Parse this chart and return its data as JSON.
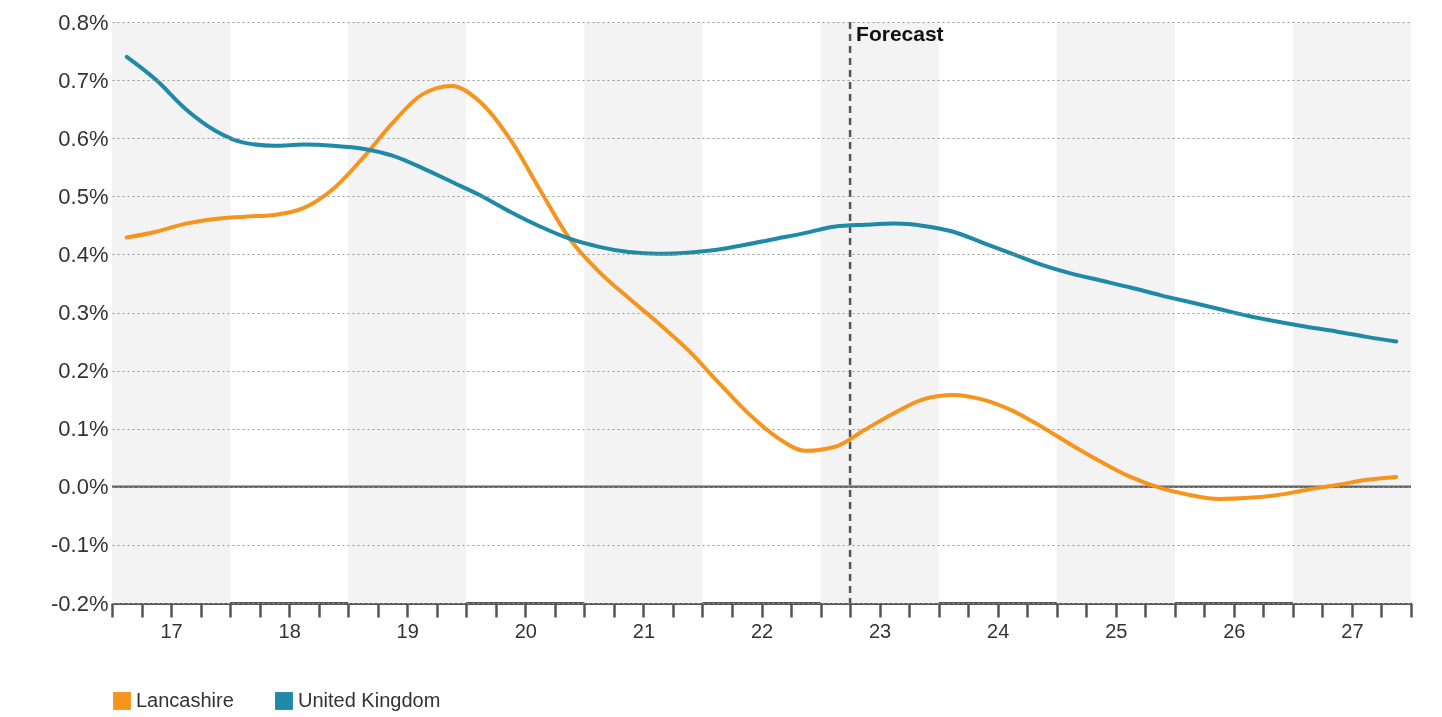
{
  "chart_data": {
    "type": "line",
    "x": [
      16.625,
      16.875,
      17.125,
      17.375,
      17.625,
      17.875,
      18.125,
      18.375,
      18.625,
      18.875,
      19.125,
      19.375,
      19.625,
      19.875,
      20.125,
      20.375,
      20.625,
      20.875,
      21.125,
      21.375,
      21.625,
      21.875,
      22.125,
      22.375,
      22.625,
      22.875,
      23.125,
      23.375,
      23.625,
      23.875,
      24.125,
      24.375,
      24.625,
      24.875,
      25.125,
      25.375,
      25.625,
      25.875,
      26.125,
      26.375,
      26.625,
      26.875,
      27.125,
      27.375
    ],
    "series": [
      {
        "name": "Lancashire",
        "color": "#f7941d",
        "values": [
          0.429,
          0.439,
          0.453,
          0.461,
          0.465,
          0.468,
          0.48,
          0.513,
          0.566,
          0.626,
          0.675,
          0.69,
          0.661,
          0.597,
          0.511,
          0.427,
          0.37,
          0.325,
          0.282,
          0.236,
          0.182,
          0.129,
          0.086,
          0.062,
          0.069,
          0.098,
          0.127,
          0.151,
          0.158,
          0.15,
          0.131,
          0.103,
          0.072,
          0.043,
          0.017,
          -0.002,
          -0.014,
          -0.021,
          -0.019,
          -0.014,
          -0.005,
          0.003,
          0.012,
          0.017
        ]
      },
      {
        "name": "United Kingdom",
        "color": "#1f8aa8",
        "values": [
          0.74,
          0.7,
          0.65,
          0.613,
          0.592,
          0.587,
          0.589,
          0.587,
          0.582,
          0.57,
          0.549,
          0.525,
          0.501,
          0.473,
          0.448,
          0.427,
          0.413,
          0.404,
          0.401,
          0.403,
          0.408,
          0.417,
          0.427,
          0.437,
          0.448,
          0.451,
          0.453,
          0.449,
          0.439,
          0.42,
          0.401,
          0.382,
          0.367,
          0.355,
          0.343,
          0.33,
          0.318,
          0.306,
          0.294,
          0.284,
          0.275,
          0.267,
          0.258,
          0.25
        ]
      }
    ],
    "xlim": [
      16.5,
      27.5
    ],
    "xticks": [
      {
        "value": 16.5,
        "label": null
      },
      {
        "value": 16.75,
        "label": null
      },
      {
        "value": 17,
        "label": "17"
      },
      {
        "value": 17.25,
        "label": null
      },
      {
        "value": 17.5,
        "label": null
      },
      {
        "value": 17.75,
        "label": null
      },
      {
        "value": 18,
        "label": "18"
      },
      {
        "value": 18.25,
        "label": null
      },
      {
        "value": 18.5,
        "label": null
      },
      {
        "value": 18.75,
        "label": null
      },
      {
        "value": 19,
        "label": "19"
      },
      {
        "value": 19.25,
        "label": null
      },
      {
        "value": 19.5,
        "label": null
      },
      {
        "value": 19.75,
        "label": null
      },
      {
        "value": 20,
        "label": "20"
      },
      {
        "value": 20.25,
        "label": null
      },
      {
        "value": 20.5,
        "label": null
      },
      {
        "value": 20.75,
        "label": null
      },
      {
        "value": 21,
        "label": "21"
      },
      {
        "value": 21.25,
        "label": null
      },
      {
        "value": 21.5,
        "label": null
      },
      {
        "value": 21.75,
        "label": null
      },
      {
        "value": 22,
        "label": "22"
      },
      {
        "value": 22.25,
        "label": null
      },
      {
        "value": 22.5,
        "label": null
      },
      {
        "value": 22.75,
        "label": null
      },
      {
        "value": 23,
        "label": "23"
      },
      {
        "value": 23.25,
        "label": null
      },
      {
        "value": 23.5,
        "label": null
      },
      {
        "value": 23.75,
        "label": null
      },
      {
        "value": 24,
        "label": "24"
      },
      {
        "value": 24.25,
        "label": null
      },
      {
        "value": 24.5,
        "label": null
      },
      {
        "value": 24.75,
        "label": null
      },
      {
        "value": 25,
        "label": "25"
      },
      {
        "value": 25.25,
        "label": null
      },
      {
        "value": 25.5,
        "label": null
      },
      {
        "value": 25.75,
        "label": null
      },
      {
        "value": 26,
        "label": "26"
      },
      {
        "value": 26.25,
        "label": null
      },
      {
        "value": 26.5,
        "label": null
      },
      {
        "value": 26.75,
        "label": null
      },
      {
        "value": 27,
        "label": "27"
      },
      {
        "value": 27.25,
        "label": null
      },
      {
        "value": 27.5,
        "label": null
      }
    ],
    "ylim": [
      -0.2,
      0.8
    ],
    "yticks": [
      {
        "value": -0.2,
        "label": "-0.2%"
      },
      {
        "value": -0.1,
        "label": "-0.1%"
      },
      {
        "value": 0,
        "label": "0.0%"
      },
      {
        "value": 0.1,
        "label": "0.1%"
      },
      {
        "value": 0.2,
        "label": "0.2%"
      },
      {
        "value": 0.3,
        "label": "0.3%"
      },
      {
        "value": 0.4,
        "label": "0.4%"
      },
      {
        "value": 0.5,
        "label": "0.5%"
      },
      {
        "value": 0.6,
        "label": "0.6%"
      },
      {
        "value": 0.7,
        "label": "0.7%"
      },
      {
        "value": 0.8,
        "label": "0.8%"
      }
    ],
    "grid": "y",
    "legend": "bottom",
    "line_style": "solid",
    "marker": "none",
    "ref_lines": [
      {
        "axis": "x",
        "value": 22.75,
        "label": "Forecast",
        "color": "#555555",
        "line_style": "dashed"
      },
      {
        "axis": "y",
        "value": 0,
        "label": null,
        "color": "#666666",
        "line_style": "solid"
      }
    ],
    "bands": [
      {
        "axis": "x",
        "from": 16.5,
        "to": 17.5,
        "label": null,
        "color": "#f3f3f3"
      },
      {
        "axis": "x",
        "from": 18.5,
        "to": 19.5,
        "label": null,
        "color": "#f3f3f3"
      },
      {
        "axis": "x",
        "from": 20.5,
        "to": 21.5,
        "label": null,
        "color": "#f3f3f3"
      },
      {
        "axis": "x",
        "from": 22.5,
        "to": 23.5,
        "label": null,
        "color": "#f3f3f3"
      },
      {
        "axis": "x",
        "from": 24.5,
        "to": 25.5,
        "label": null,
        "color": "#f3f3f3"
      },
      {
        "axis": "x",
        "from": 26.5,
        "to": 27.5,
        "label": null,
        "color": "#f3f3f3"
      }
    ]
  }
}
